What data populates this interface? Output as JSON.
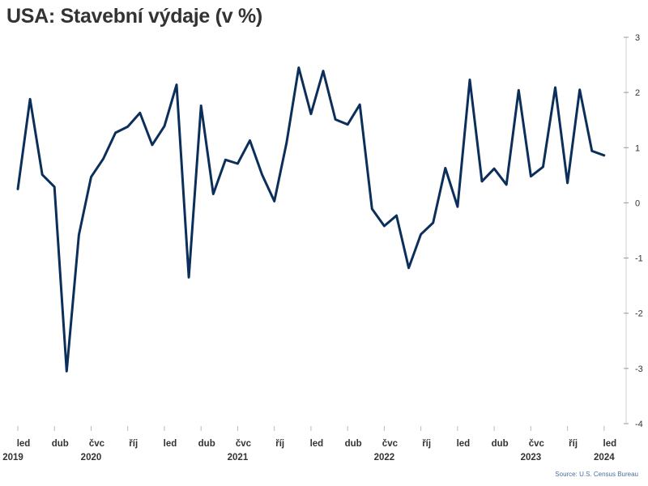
{
  "chart_data": {
    "type": "line",
    "title": "USA: Stavební výdaje (v %)",
    "source": "Source: U.S. Census Bureau",
    "line_color": "#0b2f5a",
    "ylim": [
      -4,
      3
    ],
    "y_ticks": [
      3,
      2,
      1,
      0,
      -1,
      -2,
      -3,
      -4
    ],
    "y_tick_labels": [
      "3",
      "2",
      "1",
      "0",
      "-1",
      "-2",
      "-3",
      "-4"
    ],
    "x_ticks": [
      {
        "index": 0,
        "month": "led",
        "year": "2019"
      },
      {
        "index": 3,
        "month": "dub",
        "year": ""
      },
      {
        "index": 6,
        "month": "čvc",
        "year": "2020"
      },
      {
        "index": 9,
        "month": "říj",
        "year": ""
      },
      {
        "index": 12,
        "month": "led",
        "year": ""
      },
      {
        "index": 15,
        "month": "dub",
        "year": ""
      },
      {
        "index": 18,
        "month": "čvc",
        "year": "2021"
      },
      {
        "index": 21,
        "month": "říj",
        "year": ""
      },
      {
        "index": 24,
        "month": "led",
        "year": ""
      },
      {
        "index": 27,
        "month": "dub",
        "year": ""
      },
      {
        "index": 30,
        "month": "čvc",
        "year": "2022"
      },
      {
        "index": 33,
        "month": "říj",
        "year": ""
      },
      {
        "index": 36,
        "month": "led",
        "year": ""
      },
      {
        "index": 39,
        "month": "dub",
        "year": ""
      },
      {
        "index": 42,
        "month": "čvc",
        "year": "2023"
      },
      {
        "index": 45,
        "month": "říj",
        "year": ""
      },
      {
        "index": 48,
        "month": "led",
        "year": "2024"
      }
    ],
    "series": [
      {
        "values": [
          0.25,
          1.88,
          0.51,
          0.29,
          -3.05,
          -0.58,
          0.47,
          0.8,
          1.27,
          1.38,
          1.63,
          1.05,
          1.39,
          2.14,
          -1.35,
          1.76,
          0.16,
          0.78,
          0.71,
          1.13,
          0.51,
          0.03,
          1.09,
          2.45,
          1.61,
          2.39,
          1.51,
          1.42,
          1.78,
          -0.11,
          -0.42,
          -0.23,
          -1.18,
          -0.57,
          -0.36,
          0.63,
          -0.07,
          2.23,
          0.39,
          0.62,
          0.33,
          2.04,
          0.48,
          0.65,
          2.09,
          0.36,
          2.05,
          0.94,
          0.86
        ]
      }
    ]
  }
}
